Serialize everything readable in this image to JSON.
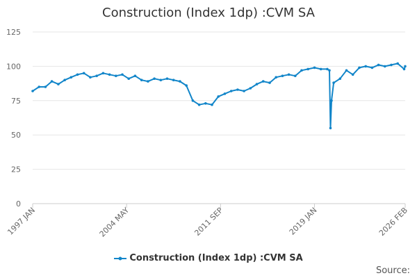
{
  "title": "Construction (Index 1dp) :CVM SA",
  "source_label": "Source:",
  "colors": {
    "series": "#1185c9",
    "axis": "#cccccc",
    "grid": "#e6e6e6",
    "text": "#666666"
  },
  "chart_data": {
    "type": "line",
    "title": "Construction (Index 1dp) :CVM SA",
    "xlabel": "",
    "ylabel": "",
    "xlim": [
      "1997 JAN",
      "2026 FEB"
    ],
    "ylim": [
      0,
      125
    ],
    "yticks": [
      0,
      25,
      50,
      75,
      100,
      125
    ],
    "xticks": [
      "1997 JAN",
      "2004 MAY",
      "2011 SEP",
      "2019 JAN",
      "2026 FEB"
    ],
    "grid": true,
    "legend": "bottom-center",
    "series": [
      {
        "name": "Construction (Index 1dp) :CVM SA",
        "x": [
          "1997 JAN",
          "1997 JUL",
          "1998 JAN",
          "1998 JUL",
          "1999 JAN",
          "1999 JUL",
          "2000 JAN",
          "2000 JUL",
          "2001 JAN",
          "2001 JUL",
          "2002 JAN",
          "2002 JUL",
          "2003 JAN",
          "2003 JUL",
          "2004 JAN",
          "2004 JUL",
          "2005 JAN",
          "2005 JUL",
          "2006 JAN",
          "2006 JUL",
          "2007 JAN",
          "2007 JUL",
          "2008 JAN",
          "2008 JUL",
          "2009 JAN",
          "2009 JUL",
          "2010 JAN",
          "2010 JUL",
          "2011 JAN",
          "2011 JUL",
          "2012 JAN",
          "2012 JUL",
          "2013 JAN",
          "2013 JUL",
          "2014 JAN",
          "2014 JUL",
          "2015 JAN",
          "2015 JUL",
          "2016 JAN",
          "2016 JUL",
          "2017 JAN",
          "2017 JUL",
          "2018 JAN",
          "2018 JUL",
          "2019 JAN",
          "2019 JUL",
          "2020 JAN",
          "2020 MAR",
          "2020 APR",
          "2020 MAY",
          "2020 JUL",
          "2021 JAN",
          "2021 JUL",
          "2022 JAN",
          "2022 JUL",
          "2023 JAN",
          "2023 JUL",
          "2024 JAN",
          "2024 JUL",
          "2025 JAN",
          "2025 JUL",
          "2026 JAN",
          "2026 FEB"
        ],
        "values": [
          82,
          85,
          85,
          89,
          87,
          90,
          92,
          94,
          95,
          92,
          93,
          95,
          94,
          93,
          94,
          91,
          93,
          90,
          89,
          91,
          90,
          91,
          90,
          89,
          86,
          75,
          72,
          73,
          72,
          78,
          80,
          82,
          83,
          82,
          84,
          87,
          89,
          88,
          92,
          93,
          94,
          93,
          97,
          98,
          99,
          98,
          98,
          97,
          55,
          75,
          88,
          91,
          97,
          94,
          99,
          100,
          99,
          101,
          100,
          101,
          102,
          98,
          100
        ]
      }
    ]
  }
}
